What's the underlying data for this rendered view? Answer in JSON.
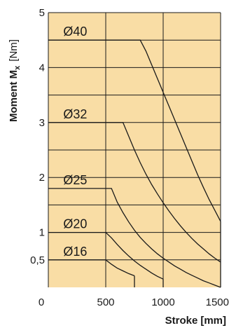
{
  "chart_data": {
    "type": "line",
    "xlim": [
      0,
      1500
    ],
    "ylim": [
      0,
      5
    ],
    "x_ticks": [
      "0",
      "500",
      "1000",
      "1500"
    ],
    "y_ticks": [
      {
        "value": 0.5,
        "label": "0,5"
      },
      {
        "value": 1,
        "label": "1"
      },
      {
        "value": 2,
        "label": "2"
      },
      {
        "value": 3,
        "label": "3"
      },
      {
        "value": 4,
        "label": "4"
      },
      {
        "value": 5,
        "label": "5"
      }
    ],
    "xlabel": {
      "bold": "Stroke",
      "unit": "[mm]"
    },
    "ylabel": {
      "bold": "Moment M",
      "sub": "x",
      "unit": "[Nm]"
    },
    "grid": true,
    "series": [
      {
        "name": "Ø40",
        "points": [
          [
            0,
            4.5
          ],
          [
            100,
            4.5
          ],
          [
            300,
            4.5
          ],
          [
            500,
            4.5
          ],
          [
            700,
            4.5
          ],
          [
            800,
            4.5
          ],
          [
            850,
            4.3
          ],
          [
            900,
            4.05
          ],
          [
            950,
            3.8
          ],
          [
            1000,
            3.55
          ],
          [
            1050,
            3.3
          ],
          [
            1100,
            3.05
          ],
          [
            1150,
            2.8
          ],
          [
            1200,
            2.55
          ],
          [
            1250,
            2.3
          ],
          [
            1300,
            2.05
          ],
          [
            1350,
            1.82
          ],
          [
            1400,
            1.6
          ],
          [
            1450,
            1.4
          ],
          [
            1500,
            1.2
          ]
        ]
      },
      {
        "name": "Ø32",
        "points": [
          [
            0,
            3.0
          ],
          [
            200,
            3.0
          ],
          [
            400,
            3.0
          ],
          [
            600,
            3.0
          ],
          [
            650,
            3.0
          ],
          [
            700,
            2.75
          ],
          [
            750,
            2.5
          ],
          [
            800,
            2.27
          ],
          [
            850,
            2.06
          ],
          [
            900,
            1.87
          ],
          [
            950,
            1.7
          ],
          [
            1000,
            1.54
          ],
          [
            1050,
            1.39
          ],
          [
            1100,
            1.25
          ],
          [
            1150,
            1.12
          ],
          [
            1200,
            1.0
          ],
          [
            1250,
            0.89
          ],
          [
            1300,
            0.79
          ],
          [
            1350,
            0.7
          ],
          [
            1400,
            0.61
          ],
          [
            1450,
            0.53
          ],
          [
            1500,
            0.46
          ]
        ]
      },
      {
        "name": "Ø25",
        "points": [
          [
            0,
            1.8
          ],
          [
            200,
            1.8
          ],
          [
            400,
            1.8
          ],
          [
            550,
            1.8
          ],
          [
            600,
            1.55
          ],
          [
            650,
            1.36
          ],
          [
            700,
            1.19
          ],
          [
            750,
            1.04
          ],
          [
            800,
            0.91
          ],
          [
            850,
            0.8
          ],
          [
            900,
            0.7
          ],
          [
            950,
            0.61
          ],
          [
            1000,
            0.53
          ],
          [
            1050,
            0.46
          ],
          [
            1100,
            0.39
          ],
          [
            1150,
            0.33
          ],
          [
            1200,
            0.27
          ],
          [
            1250,
            0.22
          ],
          [
            1300,
            0.17
          ],
          [
            1350,
            0.12
          ],
          [
            1400,
            0.08
          ],
          [
            1450,
            0.04
          ],
          [
            1500,
            0.0
          ]
        ]
      },
      {
        "name": "Ø20",
        "points": [
          [
            0,
            1.0
          ],
          [
            200,
            1.0
          ],
          [
            400,
            1.0
          ],
          [
            500,
            1.0
          ],
          [
            550,
            0.9
          ],
          [
            600,
            0.78
          ],
          [
            650,
            0.67
          ],
          [
            700,
            0.57
          ],
          [
            750,
            0.48
          ],
          [
            800,
            0.4
          ],
          [
            850,
            0.33
          ],
          [
            900,
            0.26
          ],
          [
            950,
            0.2
          ],
          [
            1000,
            0.15
          ]
        ]
      },
      {
        "name": "Ø16",
        "points": [
          [
            0,
            0.5
          ],
          [
            200,
            0.5
          ],
          [
            400,
            0.5
          ],
          [
            500,
            0.5
          ],
          [
            550,
            0.42
          ],
          [
            600,
            0.35
          ],
          [
            650,
            0.3
          ],
          [
            700,
            0.25
          ],
          [
            750,
            0.21
          ]
        ]
      }
    ],
    "vertical_limits": [
      {
        "x": 750,
        "y_top": 0.21
      },
      {
        "x": 1000,
        "y_top": 0.15
      },
      {
        "x": 1500,
        "y_top": 1.2
      }
    ],
    "colors": {
      "plot_bg": "#f9dda5",
      "grid": "#1a1a1a",
      "series": "#1a1a1a"
    }
  }
}
